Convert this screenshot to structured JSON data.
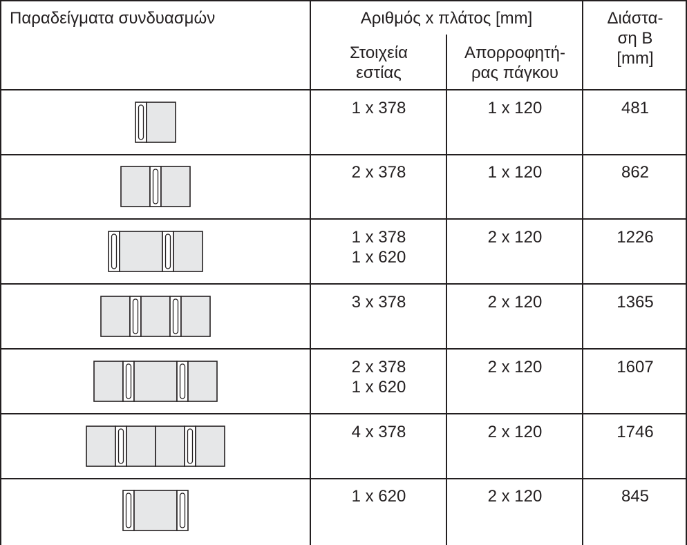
{
  "header": {
    "combination_examples": "Παραδείγματα συνδυασμών",
    "count_width": "Αριθμός x πλάτος [mm]",
    "dimension_b": "Διάστα-\nση B\n[mm]",
    "hob_elements": "Στοιχεία\nεστίας",
    "worktop_extractor": "Απορροφητή-\nρας πάγκου"
  },
  "rows": [
    {
      "elements": [
        "1 x 378"
      ],
      "extractor": "1 x 120",
      "dimension": "481",
      "diagram": [
        {
          "type": "ext"
        },
        {
          "type": "hob378"
        }
      ]
    },
    {
      "elements": [
        "2 x 378"
      ],
      "extractor": "1 x 120",
      "dimension": "862",
      "diagram": [
        {
          "type": "hob378"
        },
        {
          "type": "ext"
        },
        {
          "type": "hob378"
        }
      ]
    },
    {
      "elements": [
        "1 x 378",
        "1 x 620"
      ],
      "extractor": "2 x 120",
      "dimension": "1226",
      "diagram": [
        {
          "type": "ext"
        },
        {
          "type": "hob620"
        },
        {
          "type": "ext"
        },
        {
          "type": "hob378"
        }
      ]
    },
    {
      "elements": [
        "3 x 378"
      ],
      "extractor": "2 x 120",
      "dimension": "1365",
      "diagram": [
        {
          "type": "hob378"
        },
        {
          "type": "ext"
        },
        {
          "type": "hob378"
        },
        {
          "type": "ext"
        },
        {
          "type": "hob378"
        }
      ]
    },
    {
      "elements": [
        "2 x 378",
        "1 x 620"
      ],
      "extractor": "2 x 120",
      "dimension": "1607",
      "diagram": [
        {
          "type": "hob378"
        },
        {
          "type": "ext"
        },
        {
          "type": "hob620"
        },
        {
          "type": "ext"
        },
        {
          "type": "hob378"
        }
      ]
    },
    {
      "elements": [
        "4 x 378"
      ],
      "extractor": "2 x 120",
      "dimension": "1746",
      "diagram": [
        {
          "type": "hob378"
        },
        {
          "type": "ext"
        },
        {
          "type": "hob378"
        },
        {
          "type": "hob378"
        },
        {
          "type": "ext"
        },
        {
          "type": "hob378"
        }
      ]
    },
    {
      "elements": [
        "1 x 620"
      ],
      "extractor": "2 x 120",
      "dimension": "845",
      "diagram": [
        {
          "type": "ext"
        },
        {
          "type": "hob620"
        },
        {
          "type": "ext"
        }
      ]
    }
  ],
  "colors": {
    "hob_fill": "#e6e7e8",
    "line": "#231f20",
    "background": "#ffffff"
  }
}
